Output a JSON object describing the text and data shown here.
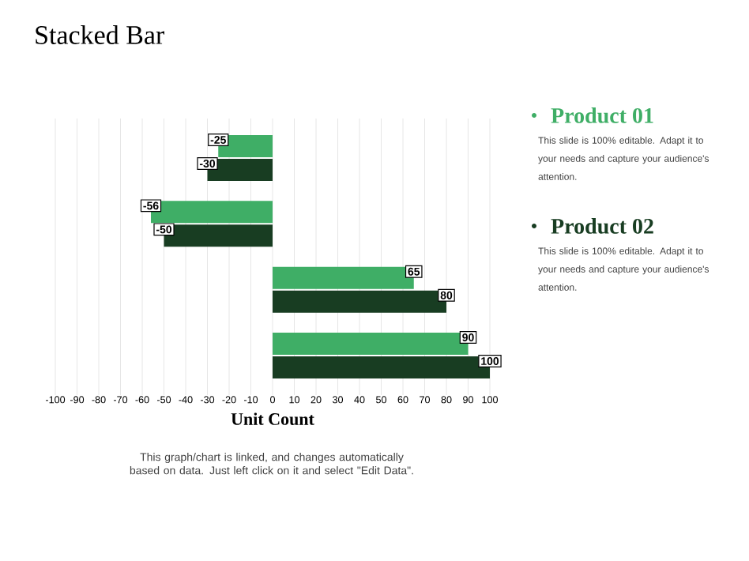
{
  "chart_data": {
    "type": "bar",
    "orientation": "horizontal",
    "title": "Stacked Bar",
    "xlabel": "Unit Count",
    "categories": [
      null,
      null,
      null,
      null
    ],
    "series": [
      {
        "name": "Product 01",
        "color": "#3fae66",
        "values": [
          -25,
          -56,
          65,
          90
        ]
      },
      {
        "name": "Product 02",
        "color": "#183d22",
        "values": [
          -30,
          -50,
          80,
          100
        ]
      }
    ],
    "xlim": [
      -100,
      100
    ],
    "xticks": [
      -100,
      -90,
      -80,
      -70,
      -60,
      -50,
      -40,
      -30,
      -20,
      -10,
      0,
      10,
      20,
      30,
      40,
      50,
      60,
      70,
      80,
      90,
      100
    ],
    "grid": "x",
    "legend": "right",
    "data_labels": true,
    "annotations": [
      "This slide is 100% editable. Adapt it to your needs and capture your audience's attention.",
      "This slide is 100% editable. Adapt it to your needs and capture your audience's attention.",
      "This graph/chart is linked, and changes automatically based on data. Just left click on it and select \"Edit Data\"."
    ]
  }
}
